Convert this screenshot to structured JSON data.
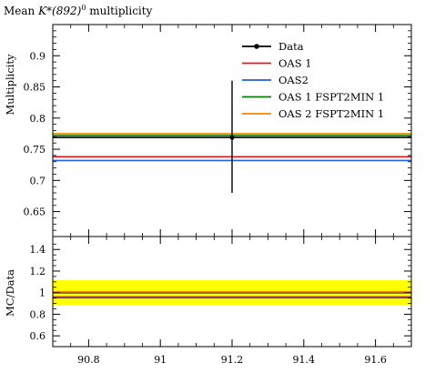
{
  "chart_data": [
    {
      "panel": "main",
      "type": "line",
      "title_main": "Mean ",
      "title_math": "K*(892)",
      "title_sup": "0",
      "title_rest": " multiplicity",
      "ylabel": "Multiplicity",
      "xlim": [
        90.7,
        91.7
      ],
      "ylim": [
        0.61,
        0.95
      ],
      "x_ticks": [
        90.8,
        91.0,
        91.2,
        91.4,
        91.6
      ],
      "y_ticks": [
        0.65,
        0.7,
        0.75,
        0.8,
        0.85,
        0.9
      ],
      "y_tick_labels": [
        "0.65",
        "0.7",
        "0.75",
        "0.8",
        "0.85",
        "0.9"
      ],
      "legend_position": "top-right",
      "data_point": {
        "name": "Data",
        "x": 91.2,
        "y": 0.769,
        "yerr_low": 0.68,
        "yerr_high": 0.86,
        "color": "#000000"
      },
      "series": [
        {
          "name": "OAS 1",
          "color": "#e31a1c",
          "y": 0.738
        },
        {
          "name": "OAS2",
          "color": "#1f5fe0",
          "y": 0.732
        },
        {
          "name": "OAS 1 FSPT2MIN 1",
          "color": "#0b7a0b",
          "y": 0.772
        },
        {
          "name": "OAS 2 FSPT2MIN 1",
          "color": "#f08a00",
          "y": 0.775
        }
      ],
      "data_line": {
        "y": 0.769,
        "color": "#000000"
      }
    },
    {
      "panel": "ratio",
      "type": "line",
      "ylabel": "MC/Data",
      "xlim": [
        90.7,
        91.7
      ],
      "ylim": [
        0.5,
        1.52
      ],
      "x_ticks": [
        90.8,
        91.0,
        91.2,
        91.4,
        91.6
      ],
      "x_tick_labels": [
        "90.8",
        "91",
        "91.2",
        "91.4",
        "91.6"
      ],
      "y_ticks": [
        0.6,
        0.8,
        1.0,
        1.2,
        1.4
      ],
      "y_tick_labels": [
        "0.6",
        "0.8",
        "1",
        "1.2",
        "1.4"
      ],
      "band": {
        "low": 0.885,
        "high": 1.115,
        "color": "#ffff00"
      },
      "ratio_lines": [
        {
          "name": "Data",
          "y": 1.0,
          "color": "#000000"
        },
        {
          "name": "OAS 1",
          "y": 0.96,
          "color": "#e31a1c"
        },
        {
          "name": "OAS2",
          "y": 0.952,
          "color": "#1f5fe0"
        },
        {
          "name": "OAS 1 FSPT2MIN 1",
          "y": 1.004,
          "color": "#0b7a0b"
        },
        {
          "name": "OAS 2 FSPT2MIN 1",
          "y": 1.008,
          "color": "#f08a00"
        }
      ]
    }
  ]
}
